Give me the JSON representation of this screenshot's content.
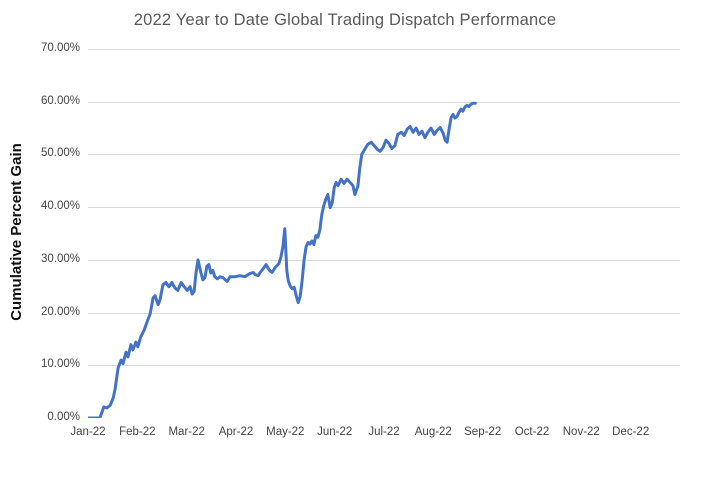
{
  "chart_data": {
    "type": "line",
    "title": "2022 Year to Date Global Trading Dispatch Performance",
    "xlabel": "",
    "ylabel": "Cumulative Percent Gain",
    "x_tick_labels": [
      "Jan-22",
      "Feb-22",
      "Mar-22",
      "Apr-22",
      "May-22",
      "Jun-22",
      "Jul-22",
      "Aug-22",
      "Sep-22",
      "Oct-22",
      "Nov-22",
      "Dec-22"
    ],
    "y_tick_labels": [
      "0.00%",
      "10.00%",
      "20.00%",
      "30.00%",
      "40.00%",
      "50.00%",
      "60.00%",
      "70.00%"
    ],
    "ylim": [
      0,
      70
    ],
    "xlim_months": [
      0,
      12
    ],
    "grid": "horizontal",
    "gridline_values": [
      10,
      20,
      30,
      40,
      50,
      60,
      70
    ],
    "legend": "none",
    "colors": {
      "line": "#4472C4",
      "gridline": "#D9D9D9",
      "title_text": "#595959",
      "tick_text": "#444444",
      "axis_title_text": "#111111"
    },
    "series": [
      {
        "name": "Cumulative Percent Gain",
        "color": "#4472C4",
        "points": [
          [
            0,
            0
          ],
          [
            0.16,
            0
          ],
          [
            0.24,
            0
          ],
          [
            0.28,
            1
          ],
          [
            0.32,
            2.1
          ],
          [
            0.38,
            1.9
          ],
          [
            0.45,
            2.4
          ],
          [
            0.51,
            3.8
          ],
          [
            0.55,
            5.5
          ],
          [
            0.61,
            9.5
          ],
          [
            0.67,
            11
          ],
          [
            0.71,
            10.3
          ],
          [
            0.77,
            12.5
          ],
          [
            0.81,
            11.6
          ],
          [
            0.87,
            13.9
          ],
          [
            0.91,
            12.9
          ],
          [
            0.97,
            14.4
          ],
          [
            1.01,
            13.5
          ],
          [
            1.07,
            15.4
          ],
          [
            1.14,
            16.7
          ],
          [
            1.2,
            18.3
          ],
          [
            1.26,
            19.8
          ],
          [
            1.32,
            22.8
          ],
          [
            1.36,
            23.2
          ],
          [
            1.42,
            21.5
          ],
          [
            1.46,
            22.4
          ],
          [
            1.52,
            25.3
          ],
          [
            1.58,
            25.7
          ],
          [
            1.64,
            24.9
          ],
          [
            1.7,
            25.7
          ],
          [
            1.76,
            24.7
          ],
          [
            1.82,
            24.2
          ],
          [
            1.89,
            25.7
          ],
          [
            1.95,
            24.9
          ],
          [
            2.01,
            24.2
          ],
          [
            2.07,
            24.9
          ],
          [
            2.11,
            23.5
          ],
          [
            2.15,
            24
          ],
          [
            2.19,
            27.5
          ],
          [
            2.23,
            30
          ],
          [
            2.29,
            27.5
          ],
          [
            2.33,
            26.2
          ],
          [
            2.37,
            26.6
          ],
          [
            2.41,
            28.8
          ],
          [
            2.45,
            29.1
          ],
          [
            2.49,
            27.5
          ],
          [
            2.53,
            28
          ],
          [
            2.57,
            26.8
          ],
          [
            2.62,
            26.4
          ],
          [
            2.68,
            26.8
          ],
          [
            2.74,
            26.6
          ],
          [
            2.82,
            25.9
          ],
          [
            2.88,
            26.8
          ],
          [
            2.98,
            26.8
          ],
          [
            3.08,
            27
          ],
          [
            3.18,
            26.8
          ],
          [
            3.28,
            27.4
          ],
          [
            3.35,
            27.6
          ],
          [
            3.39,
            27.2
          ],
          [
            3.45,
            27
          ],
          [
            3.49,
            27.6
          ],
          [
            3.55,
            28.3
          ],
          [
            3.61,
            29.1
          ],
          [
            3.67,
            28.1
          ],
          [
            3.73,
            27.6
          ],
          [
            3.79,
            28.5
          ],
          [
            3.87,
            29.3
          ],
          [
            3.91,
            30.5
          ],
          [
            3.95,
            32.5
          ],
          [
            3.99,
            35.9
          ],
          [
            4.03,
            28
          ],
          [
            4.06,
            26
          ],
          [
            4.1,
            25
          ],
          [
            4.14,
            24.5
          ],
          [
            4.18,
            24.8
          ],
          [
            4.22,
            23.2
          ],
          [
            4.26,
            21.9
          ],
          [
            4.3,
            23
          ],
          [
            4.34,
            26
          ],
          [
            4.38,
            30
          ],
          [
            4.42,
            32.5
          ],
          [
            4.46,
            33.3
          ],
          [
            4.5,
            33
          ],
          [
            4.54,
            33.6
          ],
          [
            4.58,
            32.9
          ],
          [
            4.62,
            34.6
          ],
          [
            4.66,
            34.3
          ],
          [
            4.7,
            35.7
          ],
          [
            4.74,
            38.6
          ],
          [
            4.78,
            40.3
          ],
          [
            4.82,
            41.5
          ],
          [
            4.86,
            42.4
          ],
          [
            4.91,
            39.9
          ],
          [
            4.95,
            40.8
          ],
          [
            4.99,
            43.7
          ],
          [
            5.03,
            44.7
          ],
          [
            5.07,
            44.1
          ],
          [
            5.13,
            45.3
          ],
          [
            5.19,
            44.5
          ],
          [
            5.25,
            45.3
          ],
          [
            5.31,
            44.7
          ],
          [
            5.37,
            44.1
          ],
          [
            5.41,
            42.4
          ],
          [
            5.47,
            44
          ],
          [
            5.51,
            47.5
          ],
          [
            5.55,
            50
          ],
          [
            5.61,
            51
          ],
          [
            5.67,
            51.9
          ],
          [
            5.74,
            52.3
          ],
          [
            5.8,
            51.7
          ],
          [
            5.86,
            51
          ],
          [
            5.92,
            50.6
          ],
          [
            5.98,
            51.3
          ],
          [
            6.04,
            52.7
          ],
          [
            6.1,
            52.1
          ],
          [
            6.16,
            51.1
          ],
          [
            6.22,
            51.7
          ],
          [
            6.28,
            53.8
          ],
          [
            6.35,
            54.2
          ],
          [
            6.41,
            53.6
          ],
          [
            6.47,
            54.8
          ],
          [
            6.53,
            55.3
          ],
          [
            6.59,
            54.2
          ],
          [
            6.65,
            55
          ],
          [
            6.71,
            53.8
          ],
          [
            6.77,
            54.4
          ],
          [
            6.83,
            53.2
          ],
          [
            6.89,
            54.2
          ],
          [
            6.95,
            55
          ],
          [
            7.02,
            53.8
          ],
          [
            7.08,
            54.6
          ],
          [
            7.14,
            55.1
          ],
          [
            7.2,
            54
          ],
          [
            7.24,
            52.7
          ],
          [
            7.28,
            52.3
          ],
          [
            7.32,
            54.8
          ],
          [
            7.36,
            57
          ],
          [
            7.4,
            57.6
          ],
          [
            7.44,
            56.9
          ],
          [
            7.48,
            57.2
          ],
          [
            7.52,
            58
          ],
          [
            7.56,
            58.6
          ],
          [
            7.6,
            58.2
          ],
          [
            7.64,
            59
          ],
          [
            7.68,
            59.3
          ],
          [
            7.72,
            59.1
          ],
          [
            7.76,
            59.5
          ],
          [
            7.8,
            59.7
          ],
          [
            7.85,
            59.7
          ]
        ]
      }
    ]
  }
}
